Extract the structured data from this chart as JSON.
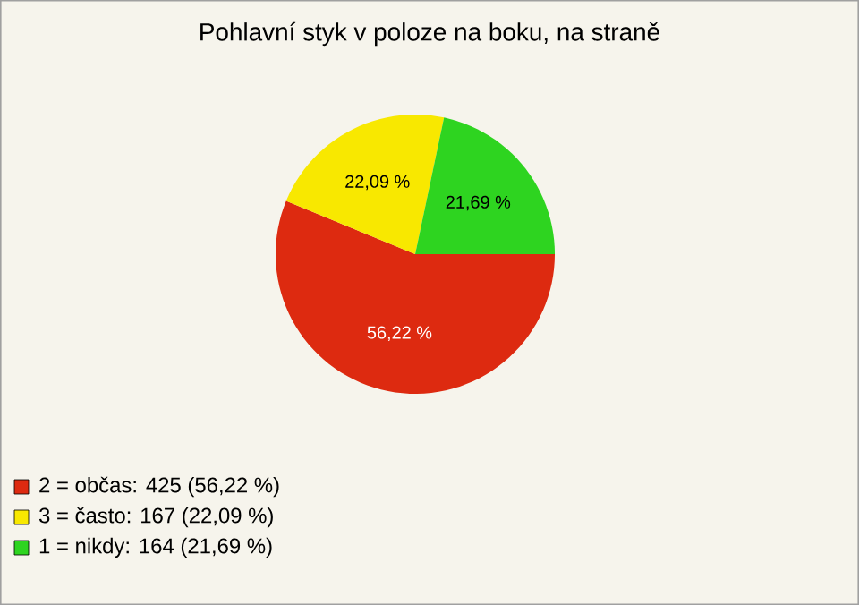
{
  "chart_data": {
    "type": "pie",
    "title": "Pohlavní styk v poloze na boku, na straně",
    "categories": [
      "2 = občas: 425 (56,22 %)",
      "3 = často: 167 (22,09 %)",
      "1 = nikdy: 164 (21,69 %)"
    ],
    "values": [
      56.22,
      22.09,
      21.69
    ],
    "colors": [
      "#dd2a10",
      "#f8e800",
      "#2ed420"
    ],
    "value_labels": [
      "56,22 %",
      "22,09 %",
      "21,69 %"
    ],
    "legend": "bottom left"
  }
}
